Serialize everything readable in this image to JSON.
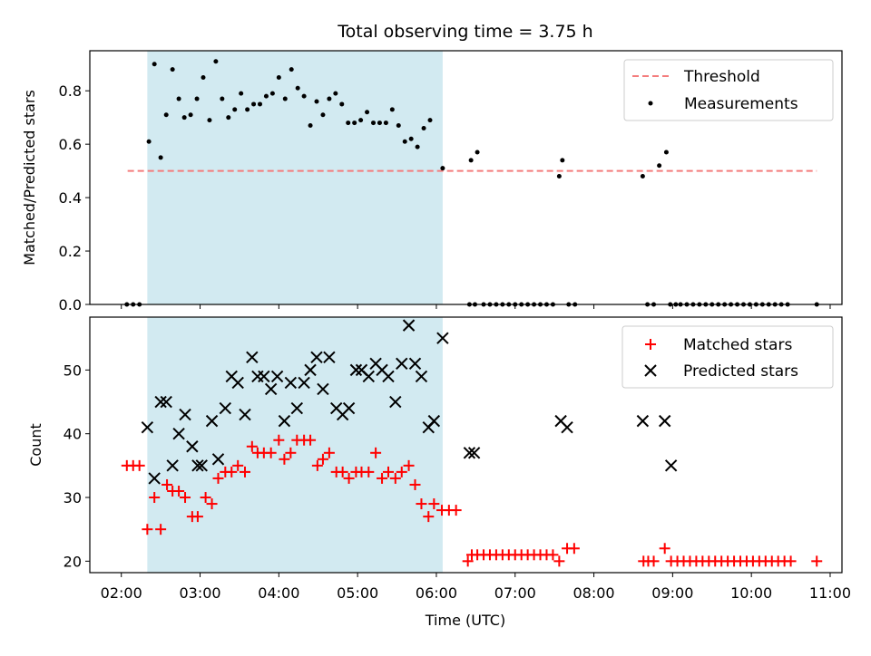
{
  "chart_data": {
    "type": "scatter",
    "title": "Total observing time = 3.75 h",
    "xlabel": "Time (UTC)",
    "x_ticks": [
      "02:00",
      "03:00",
      "04:00",
      "05:00",
      "06:00",
      "07:00",
      "08:00",
      "09:00",
      "10:00",
      "11:00"
    ],
    "x_range_hours": [
      1.6,
      11.15
    ],
    "observing_window_hours": [
      2.33,
      6.08
    ],
    "top_panel": {
      "ylabel": "Matched/Predicted stars",
      "ylim": [
        0,
        0.95
      ],
      "y_ticks": [
        "0.0",
        "0.2",
        "0.4",
        "0.6",
        "0.8"
      ],
      "y_tick_values": [
        0,
        0.2,
        0.4,
        0.6,
        0.8
      ],
      "threshold": {
        "name": "Threshold",
        "value": 0.5,
        "x_range_hours": [
          2.08,
          10.83
        ],
        "color": "#f47c7c"
      },
      "measurements": {
        "name": "Measurements",
        "color": "#000000",
        "x_hours": [
          2.07,
          2.15,
          2.23,
          2.35,
          2.42,
          2.5,
          2.57,
          2.65,
          2.73,
          2.8,
          2.88,
          2.96,
          3.04,
          3.12,
          3.2,
          3.28,
          3.36,
          3.44,
          3.52,
          3.6,
          3.68,
          3.76,
          3.84,
          3.92,
          4.0,
          4.08,
          4.16,
          4.24,
          4.32,
          4.4,
          4.48,
          4.56,
          4.64,
          4.72,
          4.8,
          4.88,
          4.96,
          5.04,
          5.12,
          5.2,
          5.28,
          5.36,
          5.44,
          5.52,
          5.6,
          5.68,
          5.76,
          5.84,
          5.92,
          6.08,
          6.42,
          6.49,
          6.44,
          6.52,
          6.6,
          6.68,
          6.76,
          6.84,
          6.92,
          7.0,
          7.08,
          7.16,
          7.24,
          7.32,
          7.4,
          7.48,
          7.56,
          7.6,
          7.68,
          7.76,
          8.62,
          8.68,
          8.76,
          8.83,
          8.92,
          8.97,
          9.04,
          9.1,
          9.18,
          9.26,
          9.34,
          9.42,
          9.5,
          9.58,
          9.66,
          9.74,
          9.82,
          9.9,
          9.98,
          10.06,
          10.14,
          10.22,
          10.3,
          10.38,
          10.46,
          10.83
        ],
        "y": [
          0,
          0,
          0,
          0.61,
          0.9,
          0.55,
          0.71,
          0.88,
          0.77,
          0.7,
          0.71,
          0.77,
          0.85,
          0.69,
          0.91,
          0.77,
          0.7,
          0.73,
          0.79,
          0.73,
          0.75,
          0.75,
          0.78,
          0.79,
          0.85,
          0.77,
          0.88,
          0.81,
          0.78,
          0.67,
          0.76,
          0.71,
          0.77,
          0.79,
          0.75,
          0.68,
          0.68,
          0.69,
          0.72,
          0.68,
          0.68,
          0.68,
          0.73,
          0.67,
          0.61,
          0.62,
          0.59,
          0.66,
          0.69,
          0.51,
          0,
          0,
          0.54,
          0.57,
          0,
          0,
          0,
          0,
          0,
          0,
          0,
          0,
          0,
          0,
          0,
          0,
          0.48,
          0.54,
          0,
          0,
          0.48,
          0,
          0,
          0.52,
          0.57,
          0,
          0,
          0,
          0,
          0,
          0,
          0,
          0,
          0,
          0,
          0,
          0,
          0,
          0,
          0,
          0,
          0,
          0,
          0,
          0,
          0
        ]
      }
    },
    "bottom_panel": {
      "ylabel": "Count",
      "ylim": [
        18.2,
        58.3
      ],
      "y_ticks": [
        "20",
        "30",
        "40",
        "50"
      ],
      "y_tick_values": [
        20,
        30,
        40,
        50
      ],
      "series": [
        {
          "name": "Matched stars",
          "marker": "plus",
          "color": "#ff0000",
          "x_hours": [
            2.07,
            2.15,
            2.23,
            2.33,
            2.42,
            2.5,
            2.58,
            2.65,
            2.73,
            2.81,
            2.9,
            2.97,
            3.07,
            3.15,
            3.23,
            3.32,
            3.4,
            3.48,
            3.57,
            3.66,
            3.73,
            3.81,
            3.9,
            4.0,
            4.07,
            4.15,
            4.23,
            4.32,
            4.4,
            4.49,
            4.56,
            4.64,
            4.73,
            4.81,
            4.89,
            4.98,
            5.05,
            5.14,
            5.23,
            5.31,
            5.39,
            5.48,
            5.56,
            5.65,
            5.73,
            5.81,
            5.9,
            5.97,
            6.07,
            6.16,
            6.25,
            6.4,
            6.45,
            6.52,
            6.6,
            6.68,
            6.76,
            6.84,
            6.92,
            7.0,
            7.08,
            7.16,
            7.24,
            7.32,
            7.4,
            7.48,
            7.56,
            7.66,
            7.75,
            8.63,
            8.69,
            8.76,
            8.9,
            8.98,
            9.06,
            9.14,
            9.22,
            9.3,
            9.38,
            9.46,
            9.54,
            9.62,
            9.7,
            9.78,
            9.86,
            9.94,
            10.02,
            10.1,
            10.18,
            10.26,
            10.34,
            10.42,
            10.5,
            10.83
          ],
          "y": [
            35,
            35,
            35,
            25,
            30,
            25,
            32,
            31,
            31,
            30,
            27,
            27,
            30,
            29,
            33,
            34,
            34,
            35,
            34,
            38,
            37,
            37,
            37,
            39,
            36,
            37,
            39,
            39,
            39,
            35,
            36,
            37,
            34,
            34,
            33,
            34,
            34,
            34,
            37,
            33,
            34,
            33,
            34,
            35,
            32,
            29,
            27,
            29,
            28,
            28,
            28,
            20,
            21,
            21,
            21,
            21,
            21,
            21,
            21,
            21,
            21,
            21,
            21,
            21,
            21,
            21,
            20,
            22,
            22,
            20,
            20,
            20,
            22,
            20,
            20,
            20,
            20,
            20,
            20,
            20,
            20,
            20,
            20,
            20,
            20,
            20,
            20,
            20,
            20,
            20,
            20,
            20,
            20,
            20
          ]
        },
        {
          "name": "Predicted stars",
          "marker": "x",
          "color": "#000000",
          "x_hours": [
            2.33,
            2.42,
            2.5,
            2.57,
            2.65,
            2.73,
            2.81,
            2.9,
            2.97,
            3.02,
            3.15,
            3.23,
            3.32,
            3.4,
            3.48,
            3.57,
            3.66,
            3.73,
            3.81,
            3.9,
            3.98,
            4.07,
            4.15,
            4.23,
            4.32,
            4.4,
            4.48,
            4.56,
            4.64,
            4.73,
            4.81,
            4.89,
            4.98,
            5.05,
            5.14,
            5.23,
            5.31,
            5.39,
            5.48,
            5.56,
            5.65,
            5.73,
            5.81,
            5.9,
            5.97,
            6.08,
            6.42,
            6.48,
            7.58,
            7.66,
            8.62,
            8.9,
            8.98
          ],
          "y": [
            41,
            33,
            45,
            45,
            35,
            40,
            43,
            38,
            35,
            35,
            42,
            36,
            44,
            49,
            48,
            43,
            52,
            49,
            49,
            47,
            49,
            42,
            48,
            44,
            48,
            50,
            52,
            47,
            52,
            44,
            43,
            44,
            50,
            50,
            49,
            51,
            50,
            49,
            45,
            51,
            57,
            51,
            49,
            41,
            42,
            55,
            37,
            37,
            42,
            41,
            42,
            42,
            35
          ]
        }
      ]
    }
  }
}
